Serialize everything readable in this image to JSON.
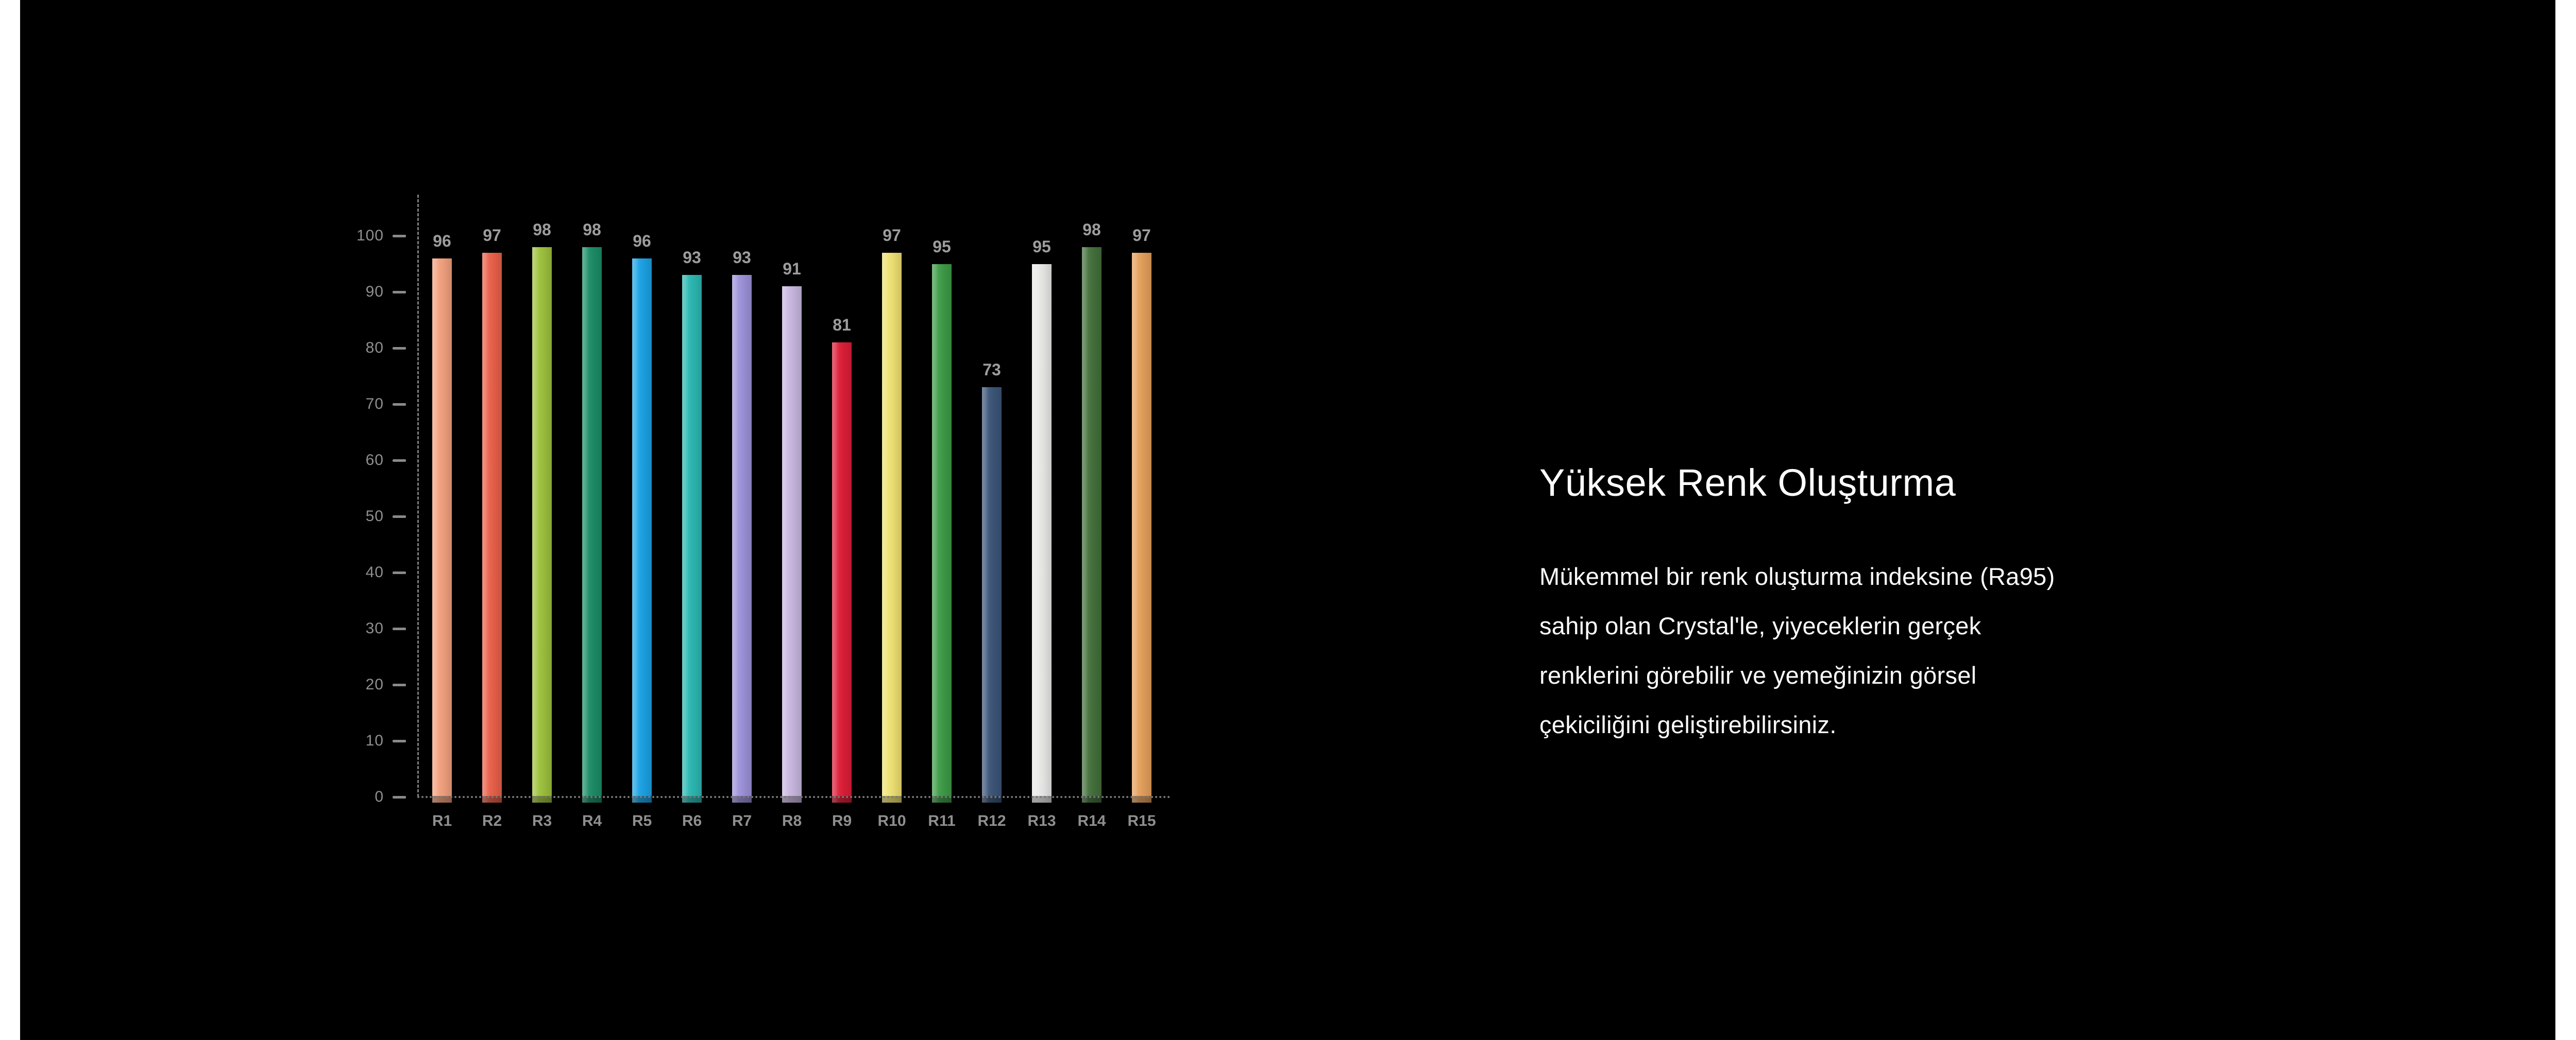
{
  "page": {
    "background": "#ffffff",
    "panel_background": "#000000"
  },
  "text_section": {
    "title": "Yüksek Renk Oluşturma",
    "body_lines": [
      "Mükemmel bir renk oluşturma indeksine (Ra95)",
      "sahip olan Crystal'le, yiyeceklerin gerçek",
      "renklerini görebilir ve yemeğinizin görsel",
      "çekiciliğini geliştirebilirsiniz."
    ]
  },
  "chart_data": {
    "type": "bar",
    "categories": [
      "R1",
      "R2",
      "R3",
      "R4",
      "R5",
      "R6",
      "R7",
      "R8",
      "R9",
      "R10",
      "R11",
      "R12",
      "R13",
      "R14",
      "R15"
    ],
    "values": [
      96,
      97,
      98,
      98,
      96,
      93,
      93,
      91,
      81,
      97,
      95,
      73,
      95,
      98,
      97
    ],
    "bar_colors": [
      "#F2A07E",
      "#E96049",
      "#9DC13D",
      "#1C8D66",
      "#1CA2E5",
      "#2CB8B2",
      "#9C92DA",
      "#C9B7E0",
      "#DD1E38",
      "#EFE173",
      "#3E9C47",
      "#3C5679",
      "#E9E9E7",
      "#44703C",
      "#E5A05C"
    ],
    "ylim": [
      0,
      100
    ],
    "yticks": [
      0,
      10,
      20,
      30,
      40,
      50,
      60,
      70,
      80,
      90,
      100
    ],
    "grid": false,
    "legend": "none",
    "value_labels_shown": true,
    "axis_label_color": "#8f8f8f",
    "value_label_color": "#9d9d9d",
    "axis_line_color": "#7d7d7d"
  }
}
